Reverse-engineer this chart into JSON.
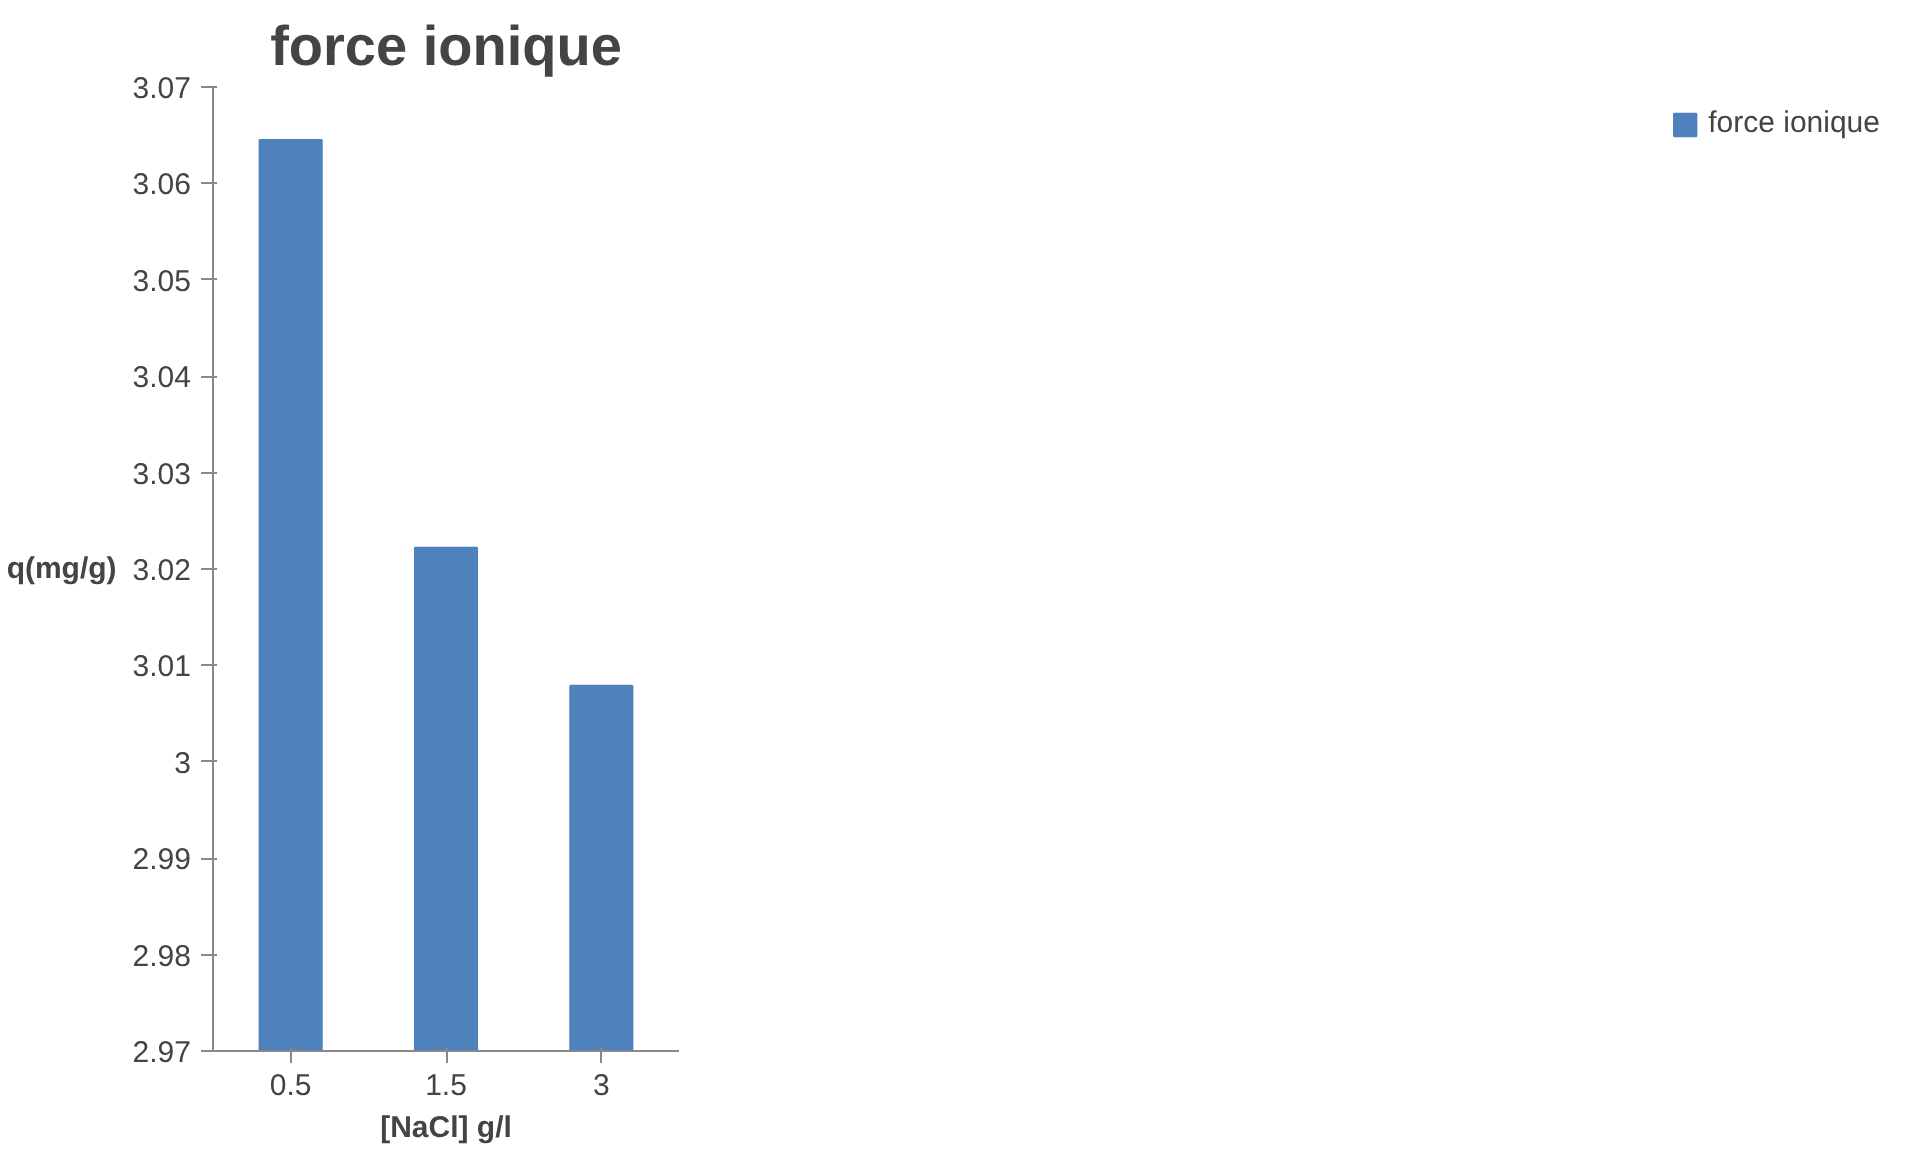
{
  "chart_data": {
    "type": "bar",
    "title": "force ionique",
    "xlabel": "[NaCl] g/l",
    "ylabel": "q(mg/g)",
    "categories": [
      "0.5",
      "1.5",
      "3"
    ],
    "series": [
      {
        "name": "force ionique",
        "color": "#4f81bd",
        "values": [
          3.0645,
          3.0222,
          3.0079
        ]
      }
    ],
    "ylim": [
      2.97,
      3.07
    ],
    "yticks": [
      2.97,
      2.98,
      2.99,
      3,
      3.01,
      3.02,
      3.03,
      3.04,
      3.05,
      3.06,
      3.07
    ],
    "grid": false,
    "legend": "right"
  }
}
